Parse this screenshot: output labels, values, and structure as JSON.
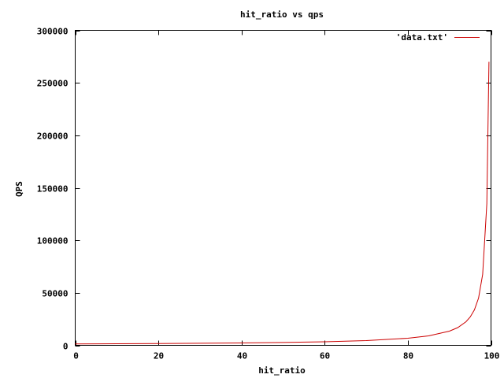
{
  "chart_data": {
    "type": "line",
    "title": "hit_ratio vs qps",
    "xlabel": "hit_ratio",
    "ylabel": "QPS",
    "xlim": [
      0,
      100
    ],
    "ylim": [
      0,
      300000
    ],
    "xticks": [
      0,
      20,
      40,
      60,
      80,
      100
    ],
    "yticks": [
      0,
      50000,
      100000,
      150000,
      200000,
      250000,
      300000
    ],
    "grid": false,
    "legend_position": "top-right",
    "series": [
      {
        "name": "'data.txt'",
        "color": "#cc0000",
        "x": [
          0,
          10,
          20,
          30,
          40,
          50,
          60,
          70,
          80,
          85,
          90,
          92,
          94,
          95,
          96,
          97,
          98,
          99,
          99.5
        ],
        "y": [
          1350,
          1500,
          1688,
          1929,
          2250,
          2700,
          3375,
          4500,
          6750,
          9000,
          13500,
          16875,
          22500,
          27000,
          33750,
          45000,
          67500,
          135000,
          270000
        ]
      }
    ]
  }
}
